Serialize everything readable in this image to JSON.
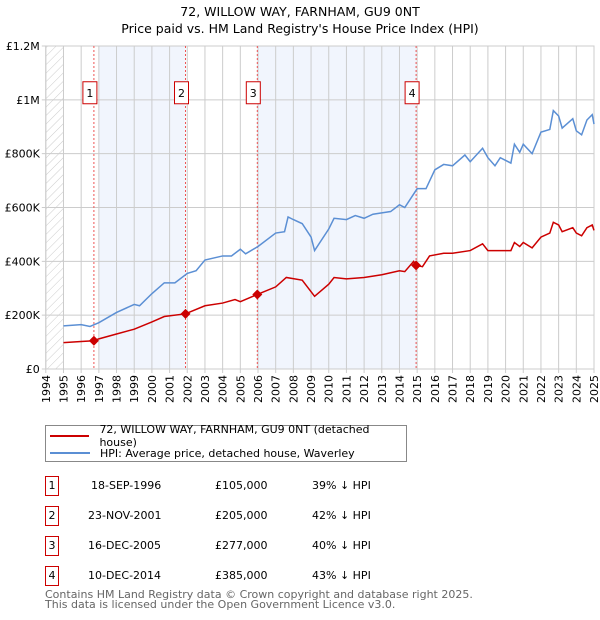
{
  "title": "72, WILLOW WAY, FARNHAM, GU9 0NT",
  "subtitle": "Price paid vs. HM Land Registry's House Price Index (HPI)",
  "chart_data": {
    "type": "line",
    "title": "72, WILLOW WAY, FARNHAM, GU9 0NT",
    "subtitle": "Price paid vs. HM Land Registry's House Price Index (HPI)",
    "xlim": [
      1994,
      2025
    ],
    "ylim": [
      0,
      1200000
    ],
    "x_ticks": [
      "1994",
      "1995",
      "1996",
      "1997",
      "1998",
      "1999",
      "2000",
      "2001",
      "2002",
      "2003",
      "2004",
      "2005",
      "2006",
      "2007",
      "2008",
      "2009",
      "2010",
      "2011",
      "2012",
      "2013",
      "2014",
      "2015",
      "2016",
      "2017",
      "2018",
      "2019",
      "2020",
      "2021",
      "2022",
      "2023",
      "2024",
      "2025"
    ],
    "y_ticks": [
      {
        "v": 0,
        "label": "£0"
      },
      {
        "v": 200000,
        "label": "£200K"
      },
      {
        "v": 400000,
        "label": "£400K"
      },
      {
        "v": 600000,
        "label": "£600K"
      },
      {
        "v": 800000,
        "label": "£800K"
      },
      {
        "v": 1000000,
        "label": "£1M"
      },
      {
        "v": 1200000,
        "label": "£1.2M"
      }
    ],
    "grid": true,
    "series": [
      {
        "name": "72, WILLOW WAY, FARNHAM, GU9 0NT (detached house)",
        "color": "#cc0000",
        "points": [
          [
            1995,
            98000
          ],
          [
            1996,
            102000
          ],
          [
            1996.72,
            105000
          ],
          [
            1997,
            112000
          ],
          [
            1998,
            130000
          ],
          [
            1999,
            148000
          ],
          [
            2000,
            175000
          ],
          [
            2000.7,
            195000
          ],
          [
            2001.9,
            205000
          ],
          [
            2003,
            235000
          ],
          [
            2004,
            245000
          ],
          [
            2004.7,
            258000
          ],
          [
            2005,
            250000
          ],
          [
            2005.96,
            277000
          ],
          [
            2007,
            305000
          ],
          [
            2007.6,
            340000
          ],
          [
            2008.5,
            330000
          ],
          [
            2009.2,
            270000
          ],
          [
            2010,
            315000
          ],
          [
            2010.3,
            340000
          ],
          [
            2011,
            335000
          ],
          [
            2012,
            340000
          ],
          [
            2013,
            350000
          ],
          [
            2014,
            365000
          ],
          [
            2014.3,
            362000
          ],
          [
            2014.8,
            400000
          ],
          [
            2014.94,
            385000
          ],
          [
            2015.3,
            380000
          ],
          [
            2015.7,
            420000
          ],
          [
            2016.5,
            430000
          ],
          [
            2017,
            430000
          ],
          [
            2018,
            440000
          ],
          [
            2018.7,
            465000
          ],
          [
            2019,
            440000
          ],
          [
            2019.5,
            440000
          ],
          [
            2020.3,
            440000
          ],
          [
            2020.5,
            470000
          ],
          [
            2020.8,
            455000
          ],
          [
            2021,
            470000
          ],
          [
            2021.5,
            450000
          ],
          [
            2022,
            490000
          ],
          [
            2022.5,
            505000
          ],
          [
            2022.7,
            545000
          ],
          [
            2023,
            535000
          ],
          [
            2023.2,
            510000
          ],
          [
            2023.8,
            525000
          ],
          [
            2024,
            505000
          ],
          [
            2024.3,
            495000
          ],
          [
            2024.6,
            525000
          ],
          [
            2024.9,
            535000
          ],
          [
            2025,
            515000
          ]
        ]
      },
      {
        "name": "HPI: Average price, detached house, Waverley",
        "color": "#5b8fd4",
        "points": [
          [
            1995,
            160000
          ],
          [
            1996,
            165000
          ],
          [
            1996.5,
            158000
          ],
          [
            1997,
            172000
          ],
          [
            1998,
            210000
          ],
          [
            1999,
            240000
          ],
          [
            1999.3,
            235000
          ],
          [
            2000,
            280000
          ],
          [
            2000.7,
            320000
          ],
          [
            2001.3,
            320000
          ],
          [
            2002,
            355000
          ],
          [
            2002.5,
            365000
          ],
          [
            2003,
            405000
          ],
          [
            2004,
            420000
          ],
          [
            2004.5,
            420000
          ],
          [
            2005,
            445000
          ],
          [
            2005.3,
            428000
          ],
          [
            2006,
            455000
          ],
          [
            2007,
            505000
          ],
          [
            2007.5,
            510000
          ],
          [
            2007.7,
            565000
          ],
          [
            2008,
            555000
          ],
          [
            2008.5,
            540000
          ],
          [
            2009,
            490000
          ],
          [
            2009.2,
            440000
          ],
          [
            2010,
            520000
          ],
          [
            2010.3,
            560000
          ],
          [
            2011,
            555000
          ],
          [
            2011.5,
            570000
          ],
          [
            2012,
            560000
          ],
          [
            2012.5,
            575000
          ],
          [
            2013,
            580000
          ],
          [
            2013.5,
            585000
          ],
          [
            2014,
            610000
          ],
          [
            2014.3,
            600000
          ],
          [
            2015,
            670000
          ],
          [
            2015.5,
            670000
          ],
          [
            2016,
            740000
          ],
          [
            2016.5,
            760000
          ],
          [
            2017,
            755000
          ],
          [
            2017.7,
            795000
          ],
          [
            2018,
            770000
          ],
          [
            2018.7,
            820000
          ],
          [
            2019,
            785000
          ],
          [
            2019.4,
            755000
          ],
          [
            2019.7,
            785000
          ],
          [
            2020.3,
            765000
          ],
          [
            2020.5,
            835000
          ],
          [
            2020.8,
            805000
          ],
          [
            2021,
            835000
          ],
          [
            2021.5,
            800000
          ],
          [
            2022,
            880000
          ],
          [
            2022.5,
            890000
          ],
          [
            2022.7,
            960000
          ],
          [
            2023,
            940000
          ],
          [
            2023.2,
            895000
          ],
          [
            2023.8,
            930000
          ],
          [
            2024,
            885000
          ],
          [
            2024.3,
            870000
          ],
          [
            2024.6,
            925000
          ],
          [
            2024.9,
            945000
          ],
          [
            2025,
            910000
          ]
        ]
      }
    ],
    "sales": [
      {
        "id": "1",
        "date": "18-SEP-1996",
        "x": 1996.72,
        "price": 105000,
        "price_label": "£105,000",
        "hpi_label": "39% ↓ HPI"
      },
      {
        "id": "2",
        "date": "23-NOV-2001",
        "x": 2001.9,
        "price": 205000,
        "price_label": "£205,000",
        "hpi_label": "42% ↓ HPI"
      },
      {
        "id": "3",
        "date": "16-DEC-2005",
        "x": 2005.96,
        "price": 277000,
        "price_label": "£277,000",
        "hpi_label": "40% ↓ HPI"
      },
      {
        "id": "4",
        "date": "10-DEC-2014",
        "x": 2014.94,
        "price": 385000,
        "price_label": "£385,000",
        "hpi_label": "43% ↓ HPI"
      }
    ],
    "shaded_ranges": [
      [
        1997,
        2001.9
      ],
      [
        2005.96,
        2014.94
      ]
    ],
    "legend_position": "below"
  },
  "legend": {
    "items": [
      "72, WILLOW WAY, FARNHAM, GU9 0NT (detached house)",
      "HPI: Average price, detached house, Waverley"
    ]
  },
  "footer": {
    "line1": "Contains HM Land Registry data © Crown copyright and database right 2025.",
    "line2": "This data is licensed under the Open Government Licence v3.0."
  }
}
